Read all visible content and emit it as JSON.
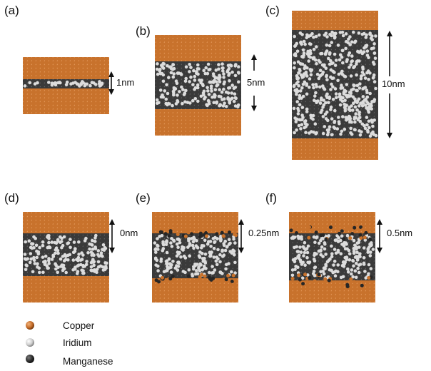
{
  "panels": [
    {
      "label": "(a)",
      "thickness": "1nm",
      "interface": ""
    },
    {
      "label": "(b)",
      "thickness": "5nm",
      "interface": ""
    },
    {
      "label": "(c)",
      "thickness": "10nm",
      "interface": ""
    },
    {
      "label": "(d)",
      "thickness": "0nm",
      "interface": "sharp"
    },
    {
      "label": "(e)",
      "thickness": "0.25nm",
      "interface": "intermixed"
    },
    {
      "label": "(f)",
      "thickness": "0.5nm",
      "interface": "intermixed"
    }
  ],
  "legend": [
    {
      "name": "Copper",
      "color": "#c56d2a"
    },
    {
      "name": "Iridium",
      "color": "#d9d9d9"
    },
    {
      "name": "Manganese",
      "color": "#2c2c2c"
    }
  ],
  "colors": {
    "copper": "#c56d2a",
    "copper_dark": "#8a4512",
    "manganese": "#333333",
    "iridium": "#dedede"
  }
}
